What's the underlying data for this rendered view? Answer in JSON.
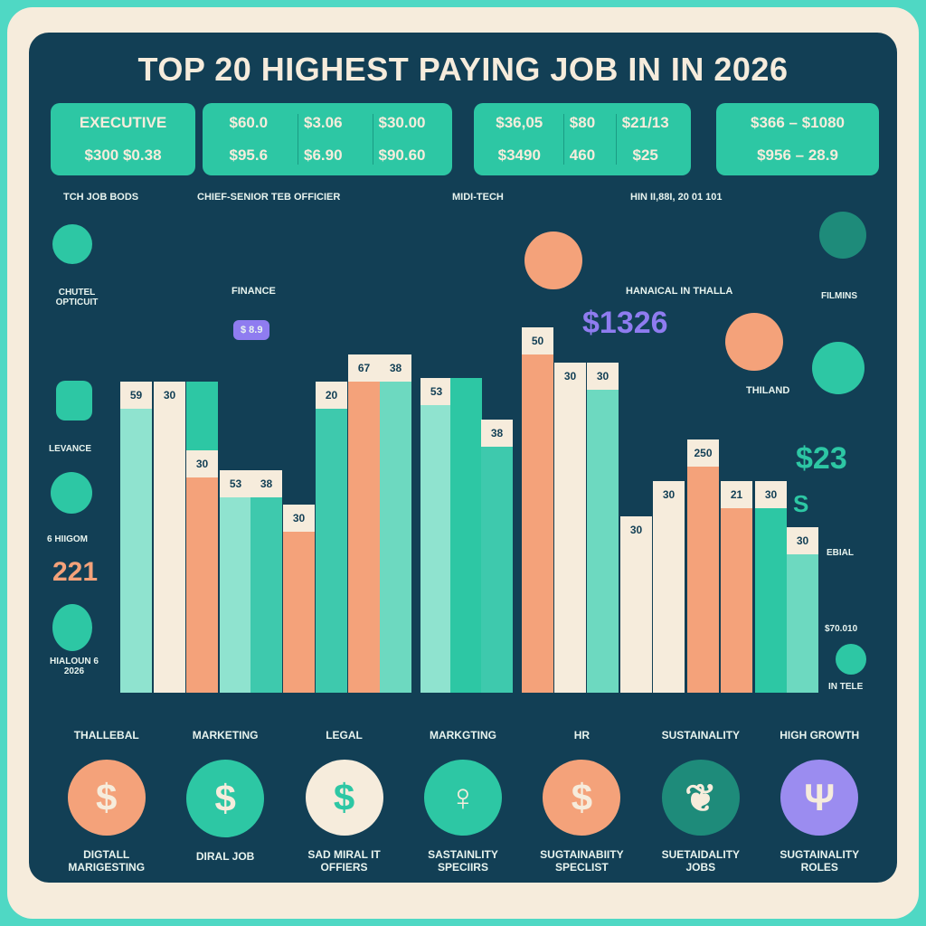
{
  "title": "TOP 20 HIGHEST PAYING JOB IN IN 2026",
  "cards": [
    {
      "cols": [
        [
          "EXECUTIVE",
          "$300  $0.38"
        ]
      ]
    },
    {
      "cols": [
        [
          "$60.0",
          "$95.6"
        ],
        [
          "$3.06",
          "$6.90"
        ],
        [
          "$30.00",
          "$90.60"
        ]
      ]
    },
    {
      "cols": [
        [
          "$36,05",
          "$3490"
        ],
        [
          "$80",
          "460"
        ],
        [
          "$21/13",
          "$25"
        ]
      ]
    },
    {
      "cols": [
        [
          "$366 – $1080",
          "$956 – 28.9"
        ]
      ]
    }
  ],
  "section_labels": [
    "TCH JOB BODS",
    "CHIEF-SENIOR TEB OFFICIER",
    "MIDI-TECH",
    "HIN II,88I, 20 01 101"
  ],
  "floating_labels": {
    "finance": "FINANCE",
    "bubble": "$ 8.9",
    "hanaical": "HANAICAL IN THALLA",
    "thiland": "THILAND",
    "big_amount": "$1326",
    "big_amount2": "$23",
    "s": "S"
  },
  "left_side": [
    "CHUTEL OPTICUIT",
    "LEVANCE",
    "6 HIIGOM",
    "221",
    "HIALOUN 6 2026"
  ],
  "right_side": [
    "FILMINS",
    "EBIAL",
    "$70.010",
    "IN TELE"
  ],
  "bars": [
    {
      "label": "59",
      "color": "#8fe3cf",
      "value": 81
    },
    {
      "label": "30",
      "color": "#f6ecdc",
      "value": 81
    },
    {
      "label": "",
      "color": "#2dc7a4",
      "value": 81
    },
    {
      "label": "30",
      "color": "#f4a27a",
      "value": 63
    },
    {
      "label": "53",
      "color": "#8fe3cf",
      "value": 58
    },
    {
      "label": "38",
      "color": "#3ec9ad",
      "value": 58
    },
    {
      "label": "30",
      "color": "#f4a27a",
      "value": 49
    },
    {
      "label": "20",
      "color": "#3ec9ad",
      "value": 81
    },
    {
      "label": "67",
      "color": "#f4a27a",
      "value": 88
    },
    {
      "label": "38",
      "color": "#6dd9c0",
      "value": 88
    },
    {
      "label": "53",
      "color": "#8fe3cf",
      "value": 82
    },
    {
      "label": "",
      "color": "#2dc7a4",
      "value": 82
    },
    {
      "label": "38",
      "color": "#3ec9ad",
      "value": 71
    },
    {
      "label": "50",
      "color": "#f4a27a",
      "value": 95
    },
    {
      "label": "30",
      "color": "#f6ecdc",
      "value": 86
    },
    {
      "label": "30",
      "color": "#6dd9c0",
      "value": 86
    },
    {
      "label": "30",
      "color": "#f6ecdc",
      "value": 46
    },
    {
      "label": "30",
      "color": "#f6ecdc",
      "value": 55
    },
    {
      "label": "250",
      "color": "#f4a27a",
      "value": 66
    },
    {
      "label": "21",
      "color": "#f4a27a",
      "value": 55
    },
    {
      "label": "30",
      "color": "#2dc7a4",
      "value": 55
    },
    {
      "label": "30",
      "color": "#6dd9c0",
      "value": 43
    }
  ],
  "categories": [
    {
      "top": "THALLEBAL",
      "bottom": "DIGTALL MARIGESTING",
      "color": "#f4a27a",
      "icon": "dollar-icon"
    },
    {
      "top": "MARKETING",
      "bottom": "DIRAL JOB",
      "color": "#2dc7a4",
      "icon": "dollar-icon"
    },
    {
      "top": "LEGAL",
      "bottom": "SAD MIRAL IT OFFIERS",
      "color": "#f6ecdc",
      "icon": "dollar-icon"
    },
    {
      "top": "MARKGTING",
      "bottom": "SASTAINLITY SPECIIRS",
      "color": "#2dc7a4",
      "icon": "ankh-icon"
    },
    {
      "top": "HR",
      "bottom": "SUGTAINABIITY SPECLIST",
      "color": "#f4a27a",
      "icon": "dollar-icon"
    },
    {
      "top": "SUSTAINALITY",
      "bottom": "SUETAIDALITY JOBS",
      "color": "#1e8b7a",
      "icon": "plant-icon"
    },
    {
      "top": "HIGH GROWTH",
      "bottom": "SUGTAINALITY ROLES",
      "color": "#9b8cf0",
      "icon": "trident-icon"
    }
  ]
}
